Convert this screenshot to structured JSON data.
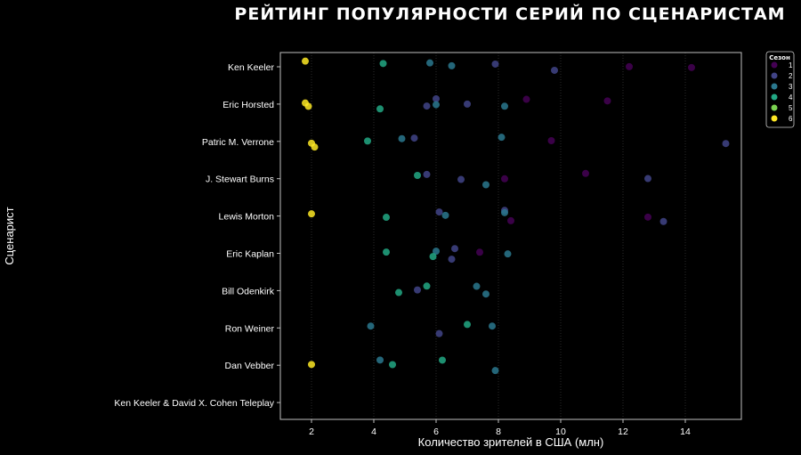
{
  "chart_data": {
    "type": "scatter",
    "title": "РЕЙТИНГ ПОПУЛЯРНОСТИ СЕРИЙ ПО СЦЕНАРИСТАМ",
    "xlabel": "Количество зрителей в США (млн)",
    "ylabel": "Сценарист",
    "xlim": [
      1.0,
      15.8
    ],
    "xticks": [
      2,
      4,
      6,
      8,
      10,
      12,
      14
    ],
    "grid": "x",
    "categories": [
      "Ken Keeler",
      "Eric Horsted",
      "Patric M. Verrone",
      "J. Stewart Burns",
      "Lewis Morton",
      "Eric Kaplan",
      "Bill Odenkirk",
      "Ron Weiner",
      "Dan Vebber",
      "Ken Keeler & David X. Cohen Teleplay"
    ],
    "legend": {
      "title": "Сезон",
      "position": "top-right",
      "labels": [
        "1",
        "2",
        "3",
        "4",
        "5",
        "6"
      ]
    },
    "colors": {
      "1": "#440154",
      "2": "#414487",
      "3": "#2a788e",
      "4": "#22a884",
      "5": "#7ad151",
      "6": "#fde725"
    },
    "series": [
      {
        "name": "1",
        "points": [
          {
            "x": 12.2,
            "y": "Ken Keeler"
          },
          {
            "x": 14.2,
            "y": "Ken Keeler"
          },
          {
            "x": 8.9,
            "y": "Eric Horsted"
          },
          {
            "x": 11.5,
            "y": "Eric Horsted"
          },
          {
            "x": 9.7,
            "y": "Patric M. Verrone"
          },
          {
            "x": 8.2,
            "y": "J. Stewart Burns"
          },
          {
            "x": 10.8,
            "y": "J. Stewart Burns"
          },
          {
            "x": 8.4,
            "y": "Lewis Morton"
          },
          {
            "x": 12.8,
            "y": "Lewis Morton"
          },
          {
            "x": 7.4,
            "y": "Eric Kaplan"
          }
        ]
      },
      {
        "name": "2",
        "points": [
          {
            "x": 7.9,
            "y": "Ken Keeler"
          },
          {
            "x": 9.8,
            "y": "Ken Keeler"
          },
          {
            "x": 5.7,
            "y": "Eric Horsted"
          },
          {
            "x": 6.0,
            "y": "Eric Horsted"
          },
          {
            "x": 7.0,
            "y": "Eric Horsted"
          },
          {
            "x": 5.3,
            "y": "Patric M. Verrone"
          },
          {
            "x": 15.3,
            "y": "Patric M. Verrone"
          },
          {
            "x": 5.7,
            "y": "J. Stewart Burns"
          },
          {
            "x": 6.8,
            "y": "J. Stewart Burns"
          },
          {
            "x": 12.8,
            "y": "J. Stewart Burns"
          },
          {
            "x": 6.1,
            "y": "Lewis Morton"
          },
          {
            "x": 8.2,
            "y": "Lewis Morton"
          },
          {
            "x": 13.3,
            "y": "Lewis Morton"
          },
          {
            "x": 6.5,
            "y": "Eric Kaplan"
          },
          {
            "x": 6.6,
            "y": "Eric Kaplan"
          },
          {
            "x": 5.4,
            "y": "Bill Odenkirk"
          },
          {
            "x": 6.1,
            "y": "Ron Weiner"
          }
        ]
      },
      {
        "name": "3",
        "points": [
          {
            "x": 5.8,
            "y": "Ken Keeler"
          },
          {
            "x": 6.5,
            "y": "Ken Keeler"
          },
          {
            "x": 6.0,
            "y": "Eric Horsted"
          },
          {
            "x": 8.2,
            "y": "Eric Horsted"
          },
          {
            "x": 4.9,
            "y": "Patric M. Verrone"
          },
          {
            "x": 8.1,
            "y": "Patric M. Verrone"
          },
          {
            "x": 7.6,
            "y": "J. Stewart Burns"
          },
          {
            "x": 6.3,
            "y": "Lewis Morton"
          },
          {
            "x": 8.2,
            "y": "Lewis Morton"
          },
          {
            "x": 8.3,
            "y": "Eric Kaplan"
          },
          {
            "x": 6.0,
            "y": "Eric Kaplan"
          },
          {
            "x": 7.3,
            "y": "Bill Odenkirk"
          },
          {
            "x": 7.6,
            "y": "Bill Odenkirk"
          },
          {
            "x": 3.9,
            "y": "Ron Weiner"
          },
          {
            "x": 7.8,
            "y": "Ron Weiner"
          },
          {
            "x": 4.2,
            "y": "Dan Vebber"
          },
          {
            "x": 7.9,
            "y": "Dan Vebber"
          }
        ]
      },
      {
        "name": "4",
        "points": [
          {
            "x": 4.3,
            "y": "Ken Keeler"
          },
          {
            "x": 4.2,
            "y": "Eric Horsted"
          },
          {
            "x": 3.8,
            "y": "Patric M. Verrone"
          },
          {
            "x": 5.4,
            "y": "J. Stewart Burns"
          },
          {
            "x": 4.4,
            "y": "Lewis Morton"
          },
          {
            "x": 4.4,
            "y": "Eric Kaplan"
          },
          {
            "x": 5.9,
            "y": "Eric Kaplan"
          },
          {
            "x": 4.8,
            "y": "Bill Odenkirk"
          },
          {
            "x": 5.7,
            "y": "Bill Odenkirk"
          },
          {
            "x": 7.0,
            "y": "Ron Weiner"
          },
          {
            "x": 4.6,
            "y": "Dan Vebber"
          },
          {
            "x": 6.2,
            "y": "Dan Vebber"
          }
        ]
      },
      {
        "name": "5",
        "points": []
      },
      {
        "name": "6",
        "points": [
          {
            "x": 1.8,
            "y": "Ken Keeler"
          },
          {
            "x": 1.8,
            "y": "Eric Horsted"
          },
          {
            "x": 1.9,
            "y": "Eric Horsted"
          },
          {
            "x": 2.0,
            "y": "Patric M. Verrone"
          },
          {
            "x": 2.1,
            "y": "Patric M. Verrone"
          },
          {
            "x": 2.0,
            "y": "Lewis Morton"
          },
          {
            "x": 2.0,
            "y": "Dan Vebber"
          }
        ]
      }
    ]
  }
}
